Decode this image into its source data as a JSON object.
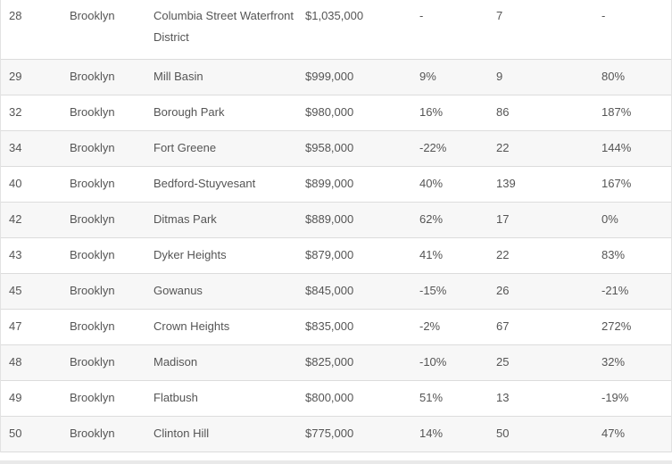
{
  "rows": [
    {
      "rank": "28",
      "borough": "Brooklyn",
      "neighborhood": "Columbia Street Waterfront District",
      "price": "$1,035,000",
      "change": "-",
      "sales": "7",
      "pct": "-"
    },
    {
      "rank": "29",
      "borough": "Brooklyn",
      "neighborhood": "Mill Basin",
      "price": "$999,000",
      "change": "9%",
      "sales": "9",
      "pct": "80%"
    },
    {
      "rank": "32",
      "borough": "Brooklyn",
      "neighborhood": "Borough Park",
      "price": "$980,000",
      "change": "16%",
      "sales": "86",
      "pct": "187%"
    },
    {
      "rank": "34",
      "borough": "Brooklyn",
      "neighborhood": "Fort Greene",
      "price": "$958,000",
      "change": "-22%",
      "sales": "22",
      "pct": "144%"
    },
    {
      "rank": "40",
      "borough": "Brooklyn",
      "neighborhood": "Bedford-Stuyvesant",
      "price": "$899,000",
      "change": "40%",
      "sales": "139",
      "pct": "167%"
    },
    {
      "rank": "42",
      "borough": "Brooklyn",
      "neighborhood": "Ditmas Park",
      "price": "$889,000",
      "change": "62%",
      "sales": "17",
      "pct": "0%"
    },
    {
      "rank": "43",
      "borough": "Brooklyn",
      "neighborhood": "Dyker Heights",
      "price": "$879,000",
      "change": "41%",
      "sales": "22",
      "pct": "83%"
    },
    {
      "rank": "45",
      "borough": "Brooklyn",
      "neighborhood": "Gowanus",
      "price": "$845,000",
      "change": "-15%",
      "sales": "26",
      "pct": "-21%"
    },
    {
      "rank": "47",
      "borough": "Brooklyn",
      "neighborhood": "Crown Heights",
      "price": "$835,000",
      "change": "-2%",
      "sales": "67",
      "pct": "272%"
    },
    {
      "rank": "48",
      "borough": "Brooklyn",
      "neighborhood": "Madison",
      "price": "$825,000",
      "change": "-10%",
      "sales": "25",
      "pct": "32%"
    },
    {
      "rank": "49",
      "borough": "Brooklyn",
      "neighborhood": "Flatbush",
      "price": "$800,000",
      "change": "51%",
      "sales": "13",
      "pct": "-19%"
    },
    {
      "rank": "50",
      "borough": "Brooklyn",
      "neighborhood": "Clinton Hill",
      "price": "$775,000",
      "change": "14%",
      "sales": "50",
      "pct": "47%"
    }
  ]
}
